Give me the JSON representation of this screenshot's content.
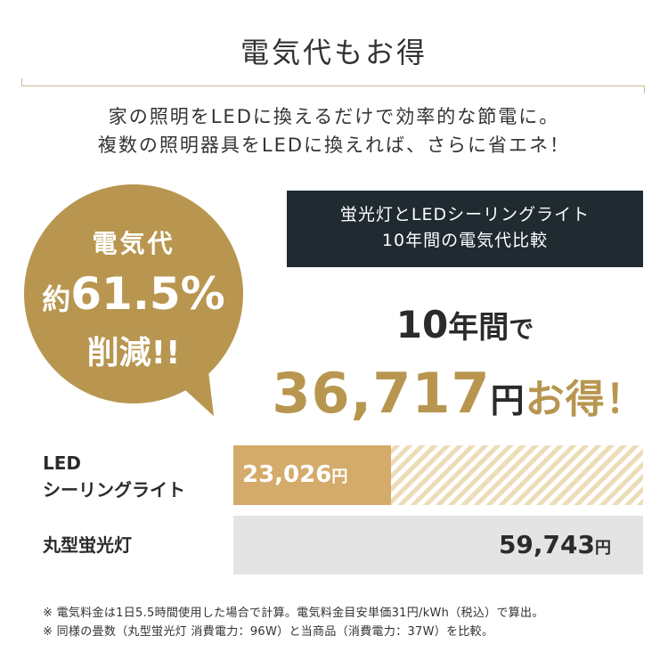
{
  "title": "電気代もお得",
  "intro": [
    "家の照明をLEDに換えるだけで効率的な節電に。",
    "複数の照明器具をLEDに換えれば、さらに省エネ！"
  ],
  "bubble": {
    "line1": "電気代",
    "prefix": "約",
    "percent": "61.5%",
    "line3": "削減!!"
  },
  "comparison_box": [
    "蛍光灯とLEDシーリングライト",
    "10年間の電気代比較"
  ],
  "headline": {
    "years": "10",
    "unit_year": "年間",
    "particle": "で",
    "amount": "36,717",
    "yen": "円",
    "otoku": "お得！"
  },
  "chart_data": {
    "type": "bar",
    "categories": [
      "LED シーリングライト",
      "丸型蛍光灯"
    ],
    "values": [
      23026,
      59743
    ],
    "value_labels": [
      "23,026",
      "59,743"
    ],
    "currency": "円",
    "colors": {
      "led": "#d4ab6b",
      "fluorescent": "#e4e4e4",
      "accent": "#b8964f"
    }
  },
  "labels": {
    "led_line1": "LED",
    "led_line2": "シーリングライト",
    "fluorescent": "丸型蛍光灯"
  },
  "notes": [
    "※ 電気料金は1日5.5時間使用した場合で計算。電気料金目安単価31円/kWh（税込）で算出。",
    "※ 同様の畳数（丸型蛍光灯 消費電力：96W）と当商品（消費電力：37W）を比較。"
  ]
}
